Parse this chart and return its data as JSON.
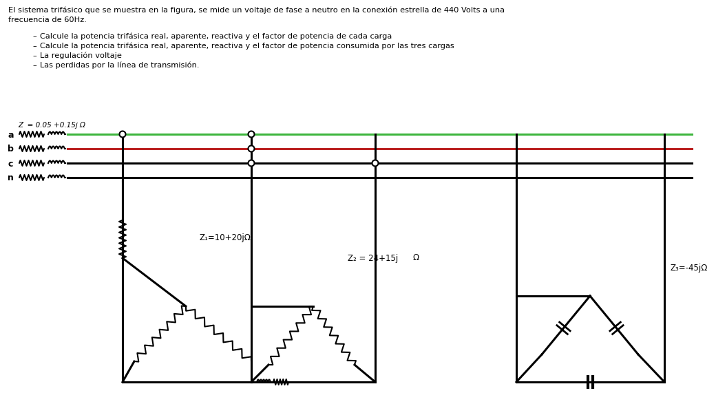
{
  "bg_color": "#ffffff",
  "text_color": "#000000",
  "title_line1": "El sistema trifásico que se muestra en la figura, se mide un voltaje de fase a neutro en la conexión estrella de 440 Volts a una",
  "title_line2": "frecuencia de 60Hz.",
  "bullet1": "Calcule la potencia trifásica real, aparente, reactiva y el factor de potencia de cada carga",
  "bullet2": "Calcule la potencia trifásica real, aparente, reactiva y el factor de potencia consumida por las tres cargas",
  "bullet3": "La regulación voltaje",
  "bullet4": "Las perdidas por la línea de transmisión.",
  "label_a": "a",
  "label_b": "b",
  "label_c": "c",
  "label_n": "n",
  "z_line_label": "Z  = 0.05 +0.15j Ω",
  "z1_label": "Z₁=10+20jΩ",
  "z2_label": "Z₂ = 24+15j",
  "z2_omega": "Ω",
  "z3_label": "Z₃=-45jΩ",
  "line_a_color": "#3db53d",
  "line_b_color": "#bb2222",
  "line_c_color": "#000000",
  "line_n_color": "#000000",
  "fig_width": 10.4,
  "fig_height": 5.87
}
